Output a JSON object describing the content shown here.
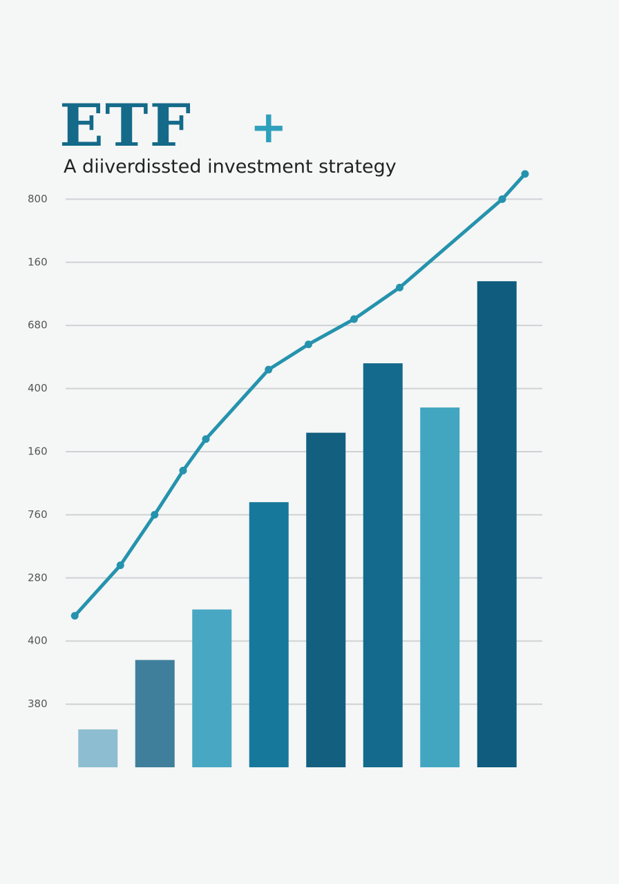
{
  "chart_data": {
    "type": "bar",
    "title": "ETF",
    "title_mark": "+",
    "subtitle": "A diiverdissted investment strategy",
    "categories": [
      null,
      null,
      null,
      null,
      null,
      null,
      null,
      null
    ],
    "xlim": [
      0,
      8
    ],
    "ylim": [
      0,
      10
    ],
    "yticks": [
      {
        "value": 1,
        "label": "380"
      },
      {
        "value": 2,
        "label": "400"
      },
      {
        "value": 3,
        "label": "280"
      },
      {
        "value": 4,
        "label": "760"
      },
      {
        "value": 5,
        "label": "160"
      },
      {
        "value": 6,
        "label": "400"
      },
      {
        "value": 7,
        "label": "680"
      },
      {
        "value": 8,
        "label": "160"
      },
      {
        "value": 9,
        "label": "800"
      }
    ],
    "grid": true,
    "series": [
      {
        "type": "bar",
        "values": [
          0.6,
          1.7,
          2.5,
          4.2,
          5.3,
          6.4,
          5.7,
          7.7
        ],
        "colors": [
          "#8dbdd0",
          "#3f7f9c",
          "#48a8c4",
          "#16799b",
          "#125f80",
          "#136a8c",
          "#43a6c1",
          "#0f5c7e"
        ]
      },
      {
        "type": "line",
        "x": [
          0.1,
          0.9,
          1.5,
          2.0,
          2.4,
          3.5,
          4.2,
          5.0,
          5.8,
          7.6,
          8.0
        ],
        "values": [
          2.4,
          3.2,
          4.0,
          4.7,
          5.2,
          6.3,
          6.7,
          7.1,
          7.6,
          9.0,
          9.4
        ],
        "color": "#2593ad"
      }
    ]
  }
}
